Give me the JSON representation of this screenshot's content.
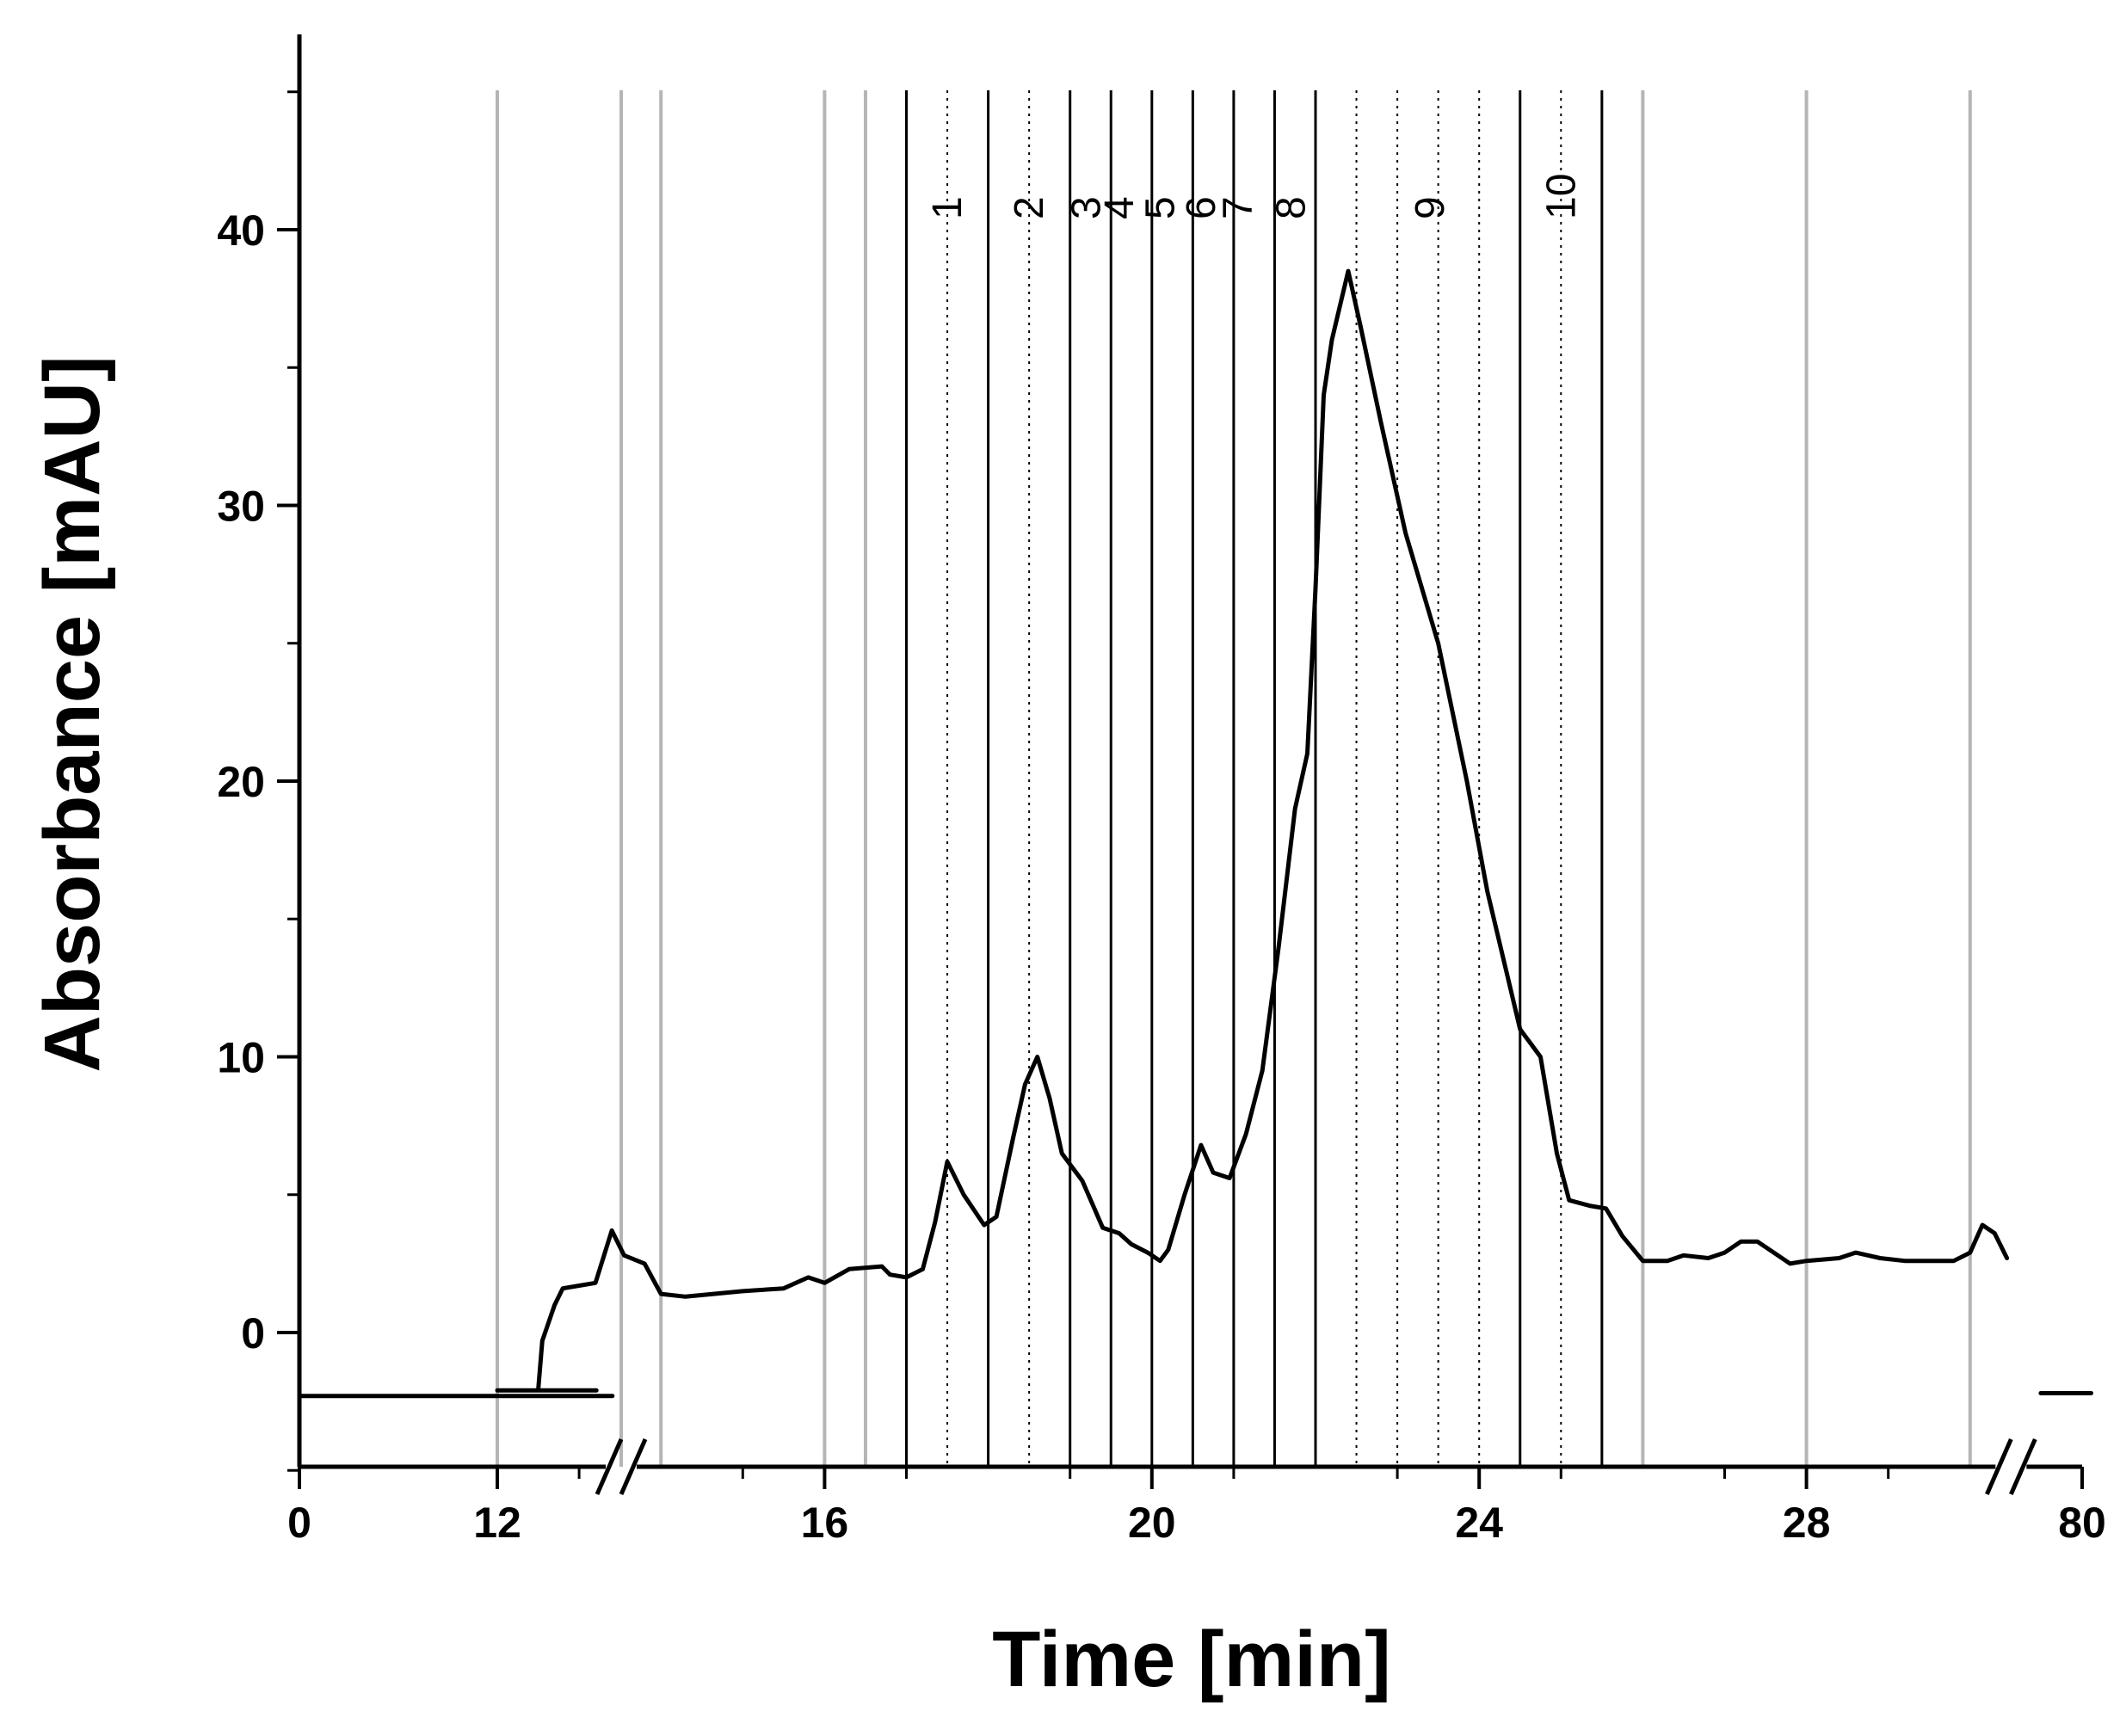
{
  "chart_data": {
    "type": "line",
    "title": "",
    "xlabel": "Time [min]",
    "ylabel": "Absorbance [mAU]",
    "x_ticks": [
      {
        "value": 0,
        "label": "0"
      },
      {
        "value": 12,
        "label": "12"
      },
      {
        "value": 16,
        "label": "16"
      },
      {
        "value": 20,
        "label": "20"
      },
      {
        "value": 24,
        "label": "24"
      },
      {
        "value": 28,
        "label": "28"
      },
      {
        "value": 80,
        "label": "80"
      }
    ],
    "y_ticks": [
      {
        "value": 0,
        "label": "0"
      },
      {
        "value": 10,
        "label": "10"
      },
      {
        "value": 20,
        "label": "20"
      },
      {
        "value": 30,
        "label": "30"
      },
      {
        "value": 40,
        "label": "40"
      }
    ],
    "ylim": [
      -5,
      47
    ],
    "axis_breaks": [
      {
        "between": [
          0,
          12
        ],
        "near": 11.0
      },
      {
        "between": [
          28,
          80
        ],
        "near": 30.5
      }
    ],
    "grey_lines": [
      11.0,
      12,
      14,
      16,
      16.5,
      26,
      28,
      30
    ],
    "fraction_boundaries": [
      17,
      18,
      19,
      19.5,
      20,
      20.5,
      21,
      21.5,
      22,
      24.5,
      25.5
    ],
    "fraction_midlines": [
      17.5,
      18.5,
      22.5,
      23,
      23.5,
      24,
      25
    ],
    "fractions": [
      {
        "label": "1",
        "x": 17.5
      },
      {
        "label": "2",
        "x": 18.5
      },
      {
        "label": "3",
        "x": 19.2
      },
      {
        "label": "4",
        "x": 19.6
      },
      {
        "label": "5",
        "x": 20.1
      },
      {
        "label": "6",
        "x": 20.6
      },
      {
        "label": "7",
        "x": 21.05
      },
      {
        "label": "8",
        "x": 21.7
      },
      {
        "label": "9",
        "x": 23.4
      },
      {
        "label": "10",
        "x": 25.0
      }
    ],
    "series": [
      {
        "name": "",
        "color": "#000000",
        "segments": [
          [
            [
              0,
              -2.3
            ],
            [
              10.7,
              -2.3
            ]
          ],
          [
            [
              11.2,
              -2.1
            ],
            [
              12.0,
              -2.1
            ],
            [
              12.5,
              -2.1
            ],
            [
              12.55,
              -0.3
            ],
            [
              12.7,
              1.0
            ],
            [
              12.8,
              1.6
            ],
            [
              13.0,
              1.7
            ],
            [
              13.2,
              1.8
            ],
            [
              13.4,
              3.7
            ],
            [
              13.55,
              2.8
            ],
            [
              13.8,
              2.5
            ],
            [
              14.0,
              1.4
            ],
            [
              14.3,
              1.3
            ],
            [
              15.0,
              1.5
            ],
            [
              15.5,
              1.6
            ],
            [
              15.8,
              2.0
            ],
            [
              16.0,
              1.8
            ],
            [
              16.3,
              2.3
            ],
            [
              16.7,
              2.4
            ],
            [
              16.8,
              2.1
            ],
            [
              17.0,
              2.0
            ],
            [
              17.2,
              2.3
            ],
            [
              17.35,
              4.0
            ],
            [
              17.5,
              6.2
            ],
            [
              17.7,
              5.0
            ],
            [
              17.95,
              3.9
            ],
            [
              18.1,
              4.2
            ],
            [
              18.3,
              7.0
            ],
            [
              18.45,
              9.0
            ],
            [
              18.6,
              10.0
            ],
            [
              18.75,
              8.5
            ],
            [
              18.9,
              6.5
            ],
            [
              19.15,
              5.5
            ],
            [
              19.4,
              3.8
            ],
            [
              19.6,
              3.6
            ],
            [
              19.75,
              3.2
            ],
            [
              19.95,
              2.9
            ],
            [
              20.1,
              2.6
            ],
            [
              20.2,
              3.0
            ],
            [
              20.4,
              5.0
            ],
            [
              20.6,
              6.8
            ],
            [
              20.75,
              5.8
            ],
            [
              20.95,
              5.6
            ],
            [
              21.15,
              7.2
            ],
            [
              21.35,
              9.5
            ],
            [
              21.55,
              14.0
            ],
            [
              21.75,
              19.0
            ],
            [
              21.9,
              21.0
            ],
            [
              22.0,
              27.0
            ],
            [
              22.1,
              34.0
            ],
            [
              22.2,
              36.0
            ],
            [
              22.4,
              38.5
            ],
            [
              22.55,
              36.5
            ],
            [
              22.8,
              33.0
            ],
            [
              23.1,
              29.0
            ],
            [
              23.5,
              25.0
            ],
            [
              23.85,
              20.0
            ],
            [
              24.1,
              16.0
            ],
            [
              24.5,
              11.0
            ],
            [
              24.75,
              10.0
            ],
            [
              24.95,
              6.5
            ],
            [
              25.1,
              4.8
            ],
            [
              25.35,
              4.6
            ],
            [
              25.55,
              4.5
            ],
            [
              25.75,
              3.5
            ],
            [
              26.0,
              2.6
            ],
            [
              26.3,
              2.6
            ],
            [
              26.5,
              2.8
            ],
            [
              26.8,
              2.7
            ],
            [
              27.0,
              2.9
            ],
            [
              27.2,
              3.3
            ],
            [
              27.4,
              3.3
            ],
            [
              27.6,
              2.9
            ],
            [
              27.8,
              2.5
            ],
            [
              28.0,
              2.6
            ],
            [
              28.4,
              2.7
            ],
            [
              28.6,
              2.9
            ],
            [
              28.9,
              2.7
            ],
            [
              29.2,
              2.6
            ],
            [
              29.5,
              2.6
            ],
            [
              29.8,
              2.6
            ],
            [
              30.0,
              2.9
            ],
            [
              30.15,
              3.9
            ],
            [
              30.3,
              3.6
            ],
            [
              30.45,
              2.7
            ]
          ],
          [
            [
              31.3,
              -2.2
            ],
            [
              32.3,
              -2.2
            ]
          ]
        ]
      }
    ]
  }
}
